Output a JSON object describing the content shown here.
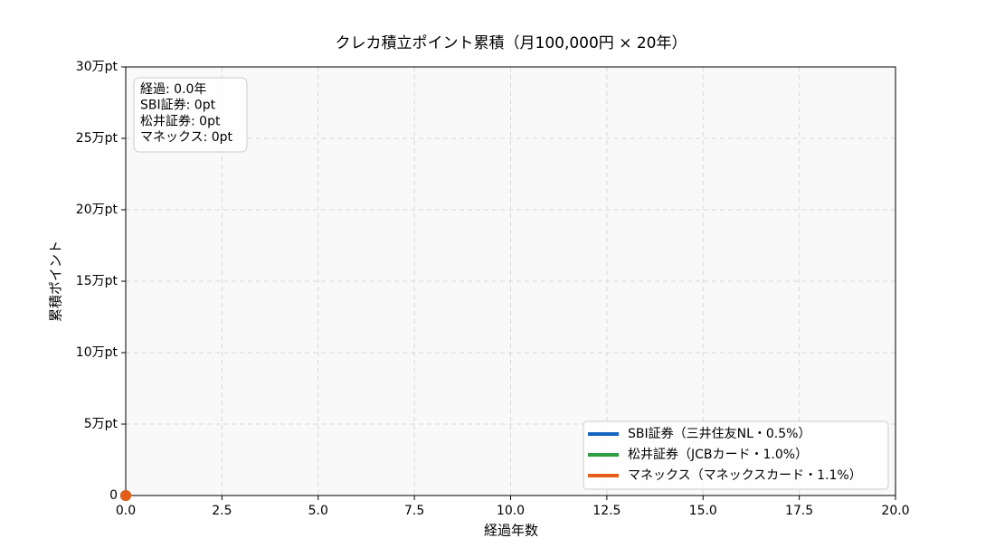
{
  "chart_data": {
    "type": "line",
    "title": "クレカ積立ポイント累積（月100,000円 × 20年）",
    "x_label": "経過年数",
    "y_label": "累積ポイント",
    "x": [
      0
    ],
    "series": [
      {
        "name": "SBI証券（三井住友NL・0.5%）",
        "color": "#1565c0",
        "values": [
          0
        ]
      },
      {
        "name": "松井証券（JCBカード・1.0%）",
        "color": "#2e9e44",
        "values": [
          0
        ]
      },
      {
        "name": "マネックス（マネックスカード・1.1%）",
        "color": "#e65c19",
        "values": [
          0
        ]
      }
    ],
    "annotation": [
      "経過:  0.0年",
      "SBI証券: 0pt",
      "松井証券: 0pt",
      "マネックス: 0pt"
    ],
    "xlim": [
      0,
      20
    ],
    "xticks": [
      {
        "value": 0,
        "label": "0.0"
      },
      2.5,
      {
        "value": 5,
        "label": "5.0"
      },
      7.5,
      {
        "value": 10,
        "label": "10.0"
      },
      12.5,
      {
        "value": 15,
        "label": "15.0"
      },
      17.5,
      {
        "value": 20,
        "label": "20.0"
      }
    ],
    "ylim": [
      0,
      300000
    ],
    "yticks": [
      0,
      {
        "value": 50000,
        "label": "5万pt"
      },
      {
        "value": 100000,
        "label": "10万pt"
      },
      {
        "value": 150000,
        "label": "15万pt"
      },
      {
        "value": 200000,
        "label": "20万pt"
      },
      {
        "value": 250000,
        "label": "25万pt"
      },
      {
        "value": 300000,
        "label": "30万pt"
      }
    ],
    "grid": true,
    "legend": "lower right"
  }
}
